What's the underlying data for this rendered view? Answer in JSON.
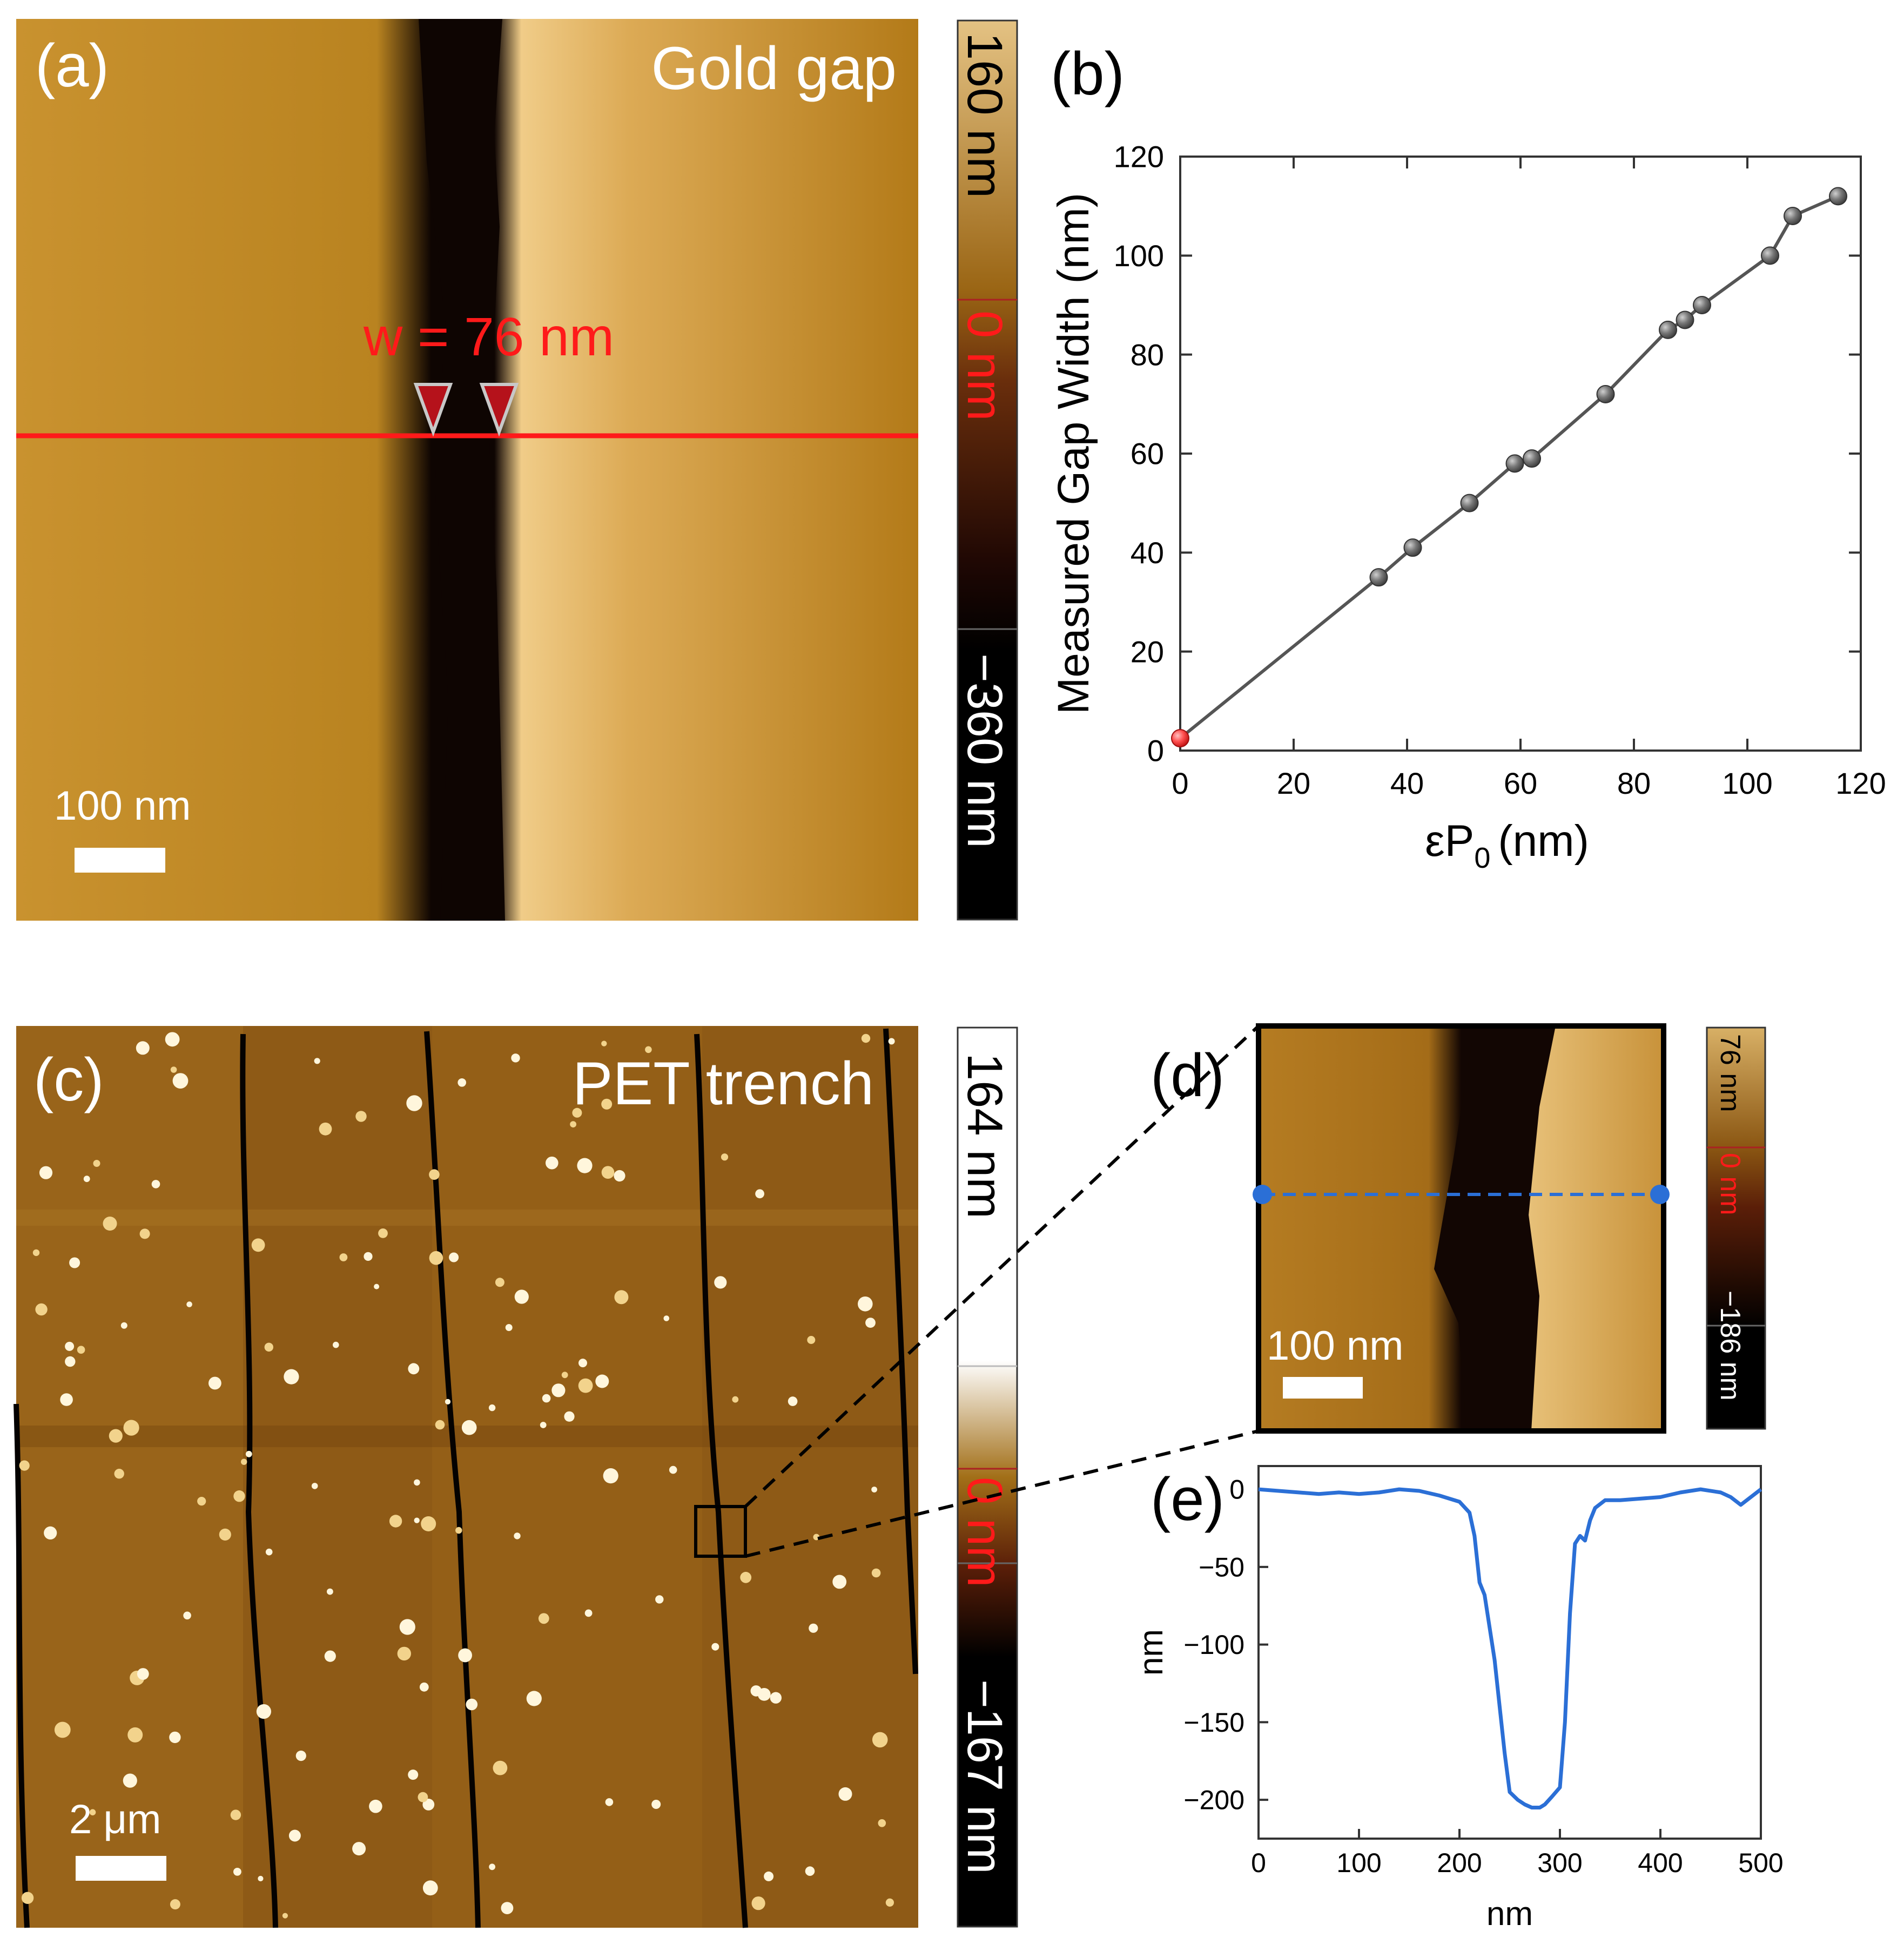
{
  "panel_a": {
    "label": "(a)",
    "title": "Gold gap",
    "width_annotation": "w = 76 nm",
    "scalebar_label": "100 nm",
    "colorbar": {
      "top": "160 nm",
      "mid": "0 nm",
      "bottom": "−360 nm"
    }
  },
  "panel_c": {
    "label": "(c)",
    "title": "PET trench",
    "scalebar_label": "2 μm",
    "colorbar": {
      "top": "164 nm",
      "mid": "0 nm",
      "bottom": "−167 nm"
    }
  },
  "panel_d": {
    "label": "(d)",
    "scalebar_label": "100 nm",
    "colorbar": {
      "top": "76 nm",
      "mid": "0 nm",
      "bottom": "−186 nm"
    }
  },
  "colors": {
    "gold_light": "#e0b56a",
    "gold_mid": "#b07b1e",
    "gold_dark": "#7a4a08",
    "trench": "#0e0502",
    "annotation_red": "#ff1a1a",
    "profile_blue": "#2b6fd6",
    "series_gray": "#555555"
  },
  "chart_data": [
    {
      "panel": "(b)",
      "type": "line",
      "title": "",
      "xlabel": "εP",
      "xlabel_sub": "0",
      "xlabel_unit": "(nm)",
      "ylabel": "Measured Gap Width (nm)",
      "xlim": [
        0,
        120
      ],
      "ylim": [
        0,
        120
      ],
      "xticks": [
        0,
        20,
        40,
        60,
        80,
        100,
        120
      ],
      "yticks": [
        0,
        20,
        40,
        60,
        80,
        100,
        120
      ],
      "x": [
        0,
        35,
        41,
        51,
        59,
        62,
        75,
        86,
        89,
        92,
        104,
        108,
        116
      ],
      "y": [
        2.5,
        35,
        41,
        50,
        58,
        59,
        72,
        85,
        87,
        90,
        100,
        108,
        112
      ],
      "highlight_index": 0
    },
    {
      "panel": "(e)",
      "type": "line",
      "title": "",
      "xlabel": "nm",
      "ylabel": "nm",
      "xlim": [
        0,
        500
      ],
      "ylim": [
        -225,
        15
      ],
      "xticks": [
        0,
        100,
        200,
        300,
        400,
        500
      ],
      "yticks": [
        0,
        -50,
        -100,
        -150,
        -200
      ],
      "x": [
        0,
        20,
        40,
        60,
        80,
        100,
        120,
        140,
        160,
        180,
        200,
        210,
        215,
        220,
        225,
        235,
        245,
        250,
        258,
        265,
        272,
        280,
        285,
        292,
        300,
        305,
        310,
        315,
        320,
        325,
        330,
        335,
        345,
        360,
        380,
        400,
        420,
        440,
        460,
        470,
        480,
        490,
        500
      ],
      "y": [
        0,
        -1,
        -2,
        -3,
        -2,
        -3,
        -2,
        0,
        -1,
        -4,
        -8,
        -15,
        -30,
        -60,
        -68,
        -110,
        -170,
        -195,
        -200,
        -203,
        -205,
        -205,
        -203,
        -198,
        -192,
        -150,
        -80,
        -35,
        -30,
        -33,
        -20,
        -12,
        -7,
        -7,
        -6,
        -5,
        -2,
        0,
        -2,
        -5,
        -10,
        -5,
        0
      ]
    }
  ]
}
